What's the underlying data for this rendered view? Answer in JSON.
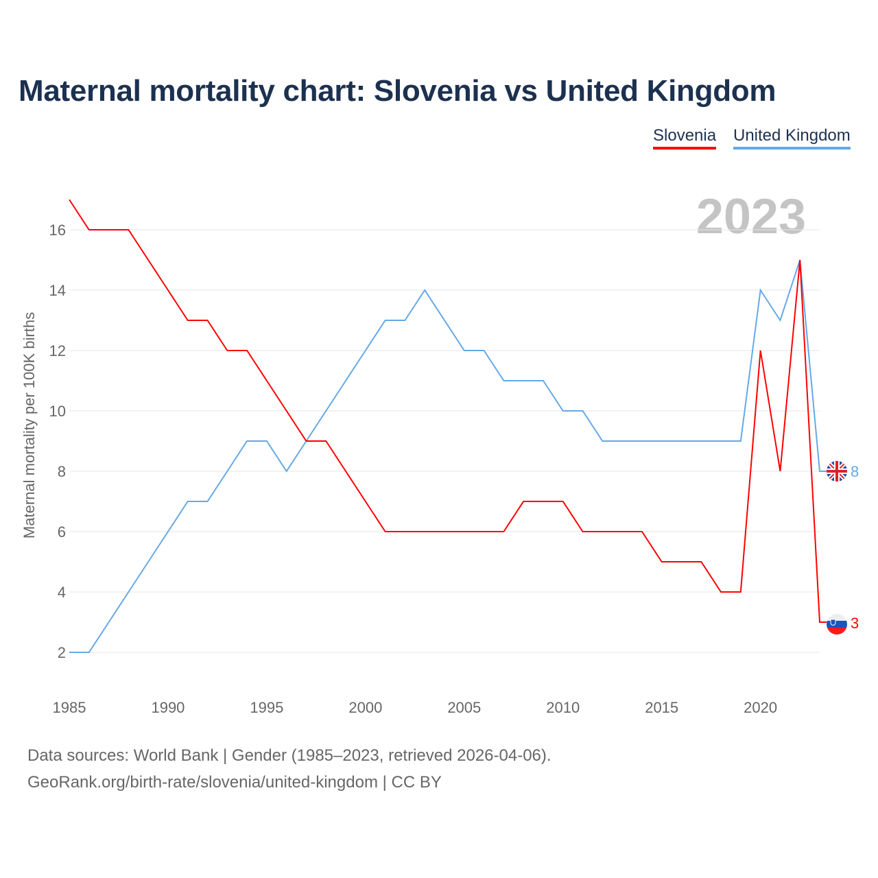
{
  "chart_data": {
    "type": "line",
    "title": "Maternal mortality chart: Slovenia vs United Kingdom",
    "xlabel": "",
    "ylabel": "Maternal mortality per 100K births",
    "xlim": [
      1985,
      2023
    ],
    "ylim": [
      2,
      17
    ],
    "x_ticks": [
      1985,
      1990,
      1995,
      2000,
      2005,
      2010,
      2015,
      2020
    ],
    "y_ticks": [
      2,
      4,
      6,
      8,
      10,
      12,
      14,
      16
    ],
    "grid": true,
    "legend_placement": "top-right",
    "year_label": "2023",
    "x": [
      1985,
      1986,
      1987,
      1988,
      1989,
      1990,
      1991,
      1992,
      1993,
      1994,
      1995,
      1996,
      1997,
      1998,
      1999,
      2000,
      2001,
      2002,
      2003,
      2004,
      2005,
      2006,
      2007,
      2008,
      2009,
      2010,
      2011,
      2012,
      2013,
      2014,
      2015,
      2016,
      2017,
      2018,
      2019,
      2020,
      2021,
      2022,
      2023
    ],
    "series": [
      {
        "name": "Slovenia",
        "color": "#ff0000",
        "end_label": "3",
        "values": [
          17,
          16,
          16,
          16,
          15,
          14,
          13,
          13,
          12,
          12,
          11,
          10,
          9,
          9,
          8,
          7,
          6,
          6,
          6,
          6,
          6,
          6,
          6,
          7,
          7,
          7,
          6,
          6,
          6,
          6,
          5,
          5,
          5,
          4,
          4,
          12,
          8,
          15,
          3
        ]
      },
      {
        "name": "United Kingdom",
        "color": "#64a8e8",
        "end_label": "8",
        "values": [
          2,
          2,
          3,
          4,
          5,
          6,
          7,
          7,
          8,
          9,
          9,
          8,
          9,
          10,
          11,
          12,
          13,
          13,
          14,
          13,
          12,
          12,
          11,
          11,
          11,
          10,
          10,
          9,
          9,
          9,
          9,
          9,
          9,
          9,
          9,
          14,
          13,
          15,
          8
        ]
      }
    ]
  },
  "footer": {
    "line1": "Data sources: World Bank | Gender (1985–2023, retrieved 2026-04-06).",
    "line2": "GeoRank.org/birth-rate/slovenia/united-kingdom | CC BY"
  }
}
